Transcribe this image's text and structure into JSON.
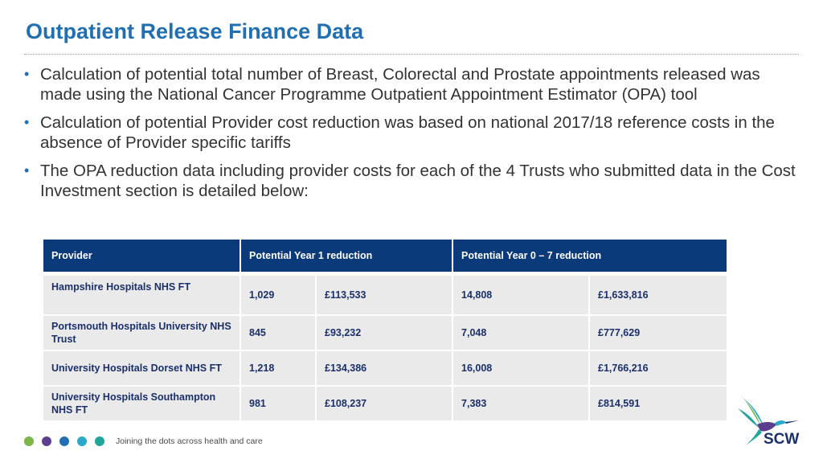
{
  "title": "Outpatient Release Finance Data",
  "bullets": [
    "Calculation of potential total number of Breast, Colorectal and Prostate appointments released was made using the National Cancer Programme Outpatient Appointment Estimator (OPA) tool",
    "Calculation of potential Provider cost reduction was based on national 2017/18 reference costs in the absence of Provider specific tariffs",
    "The OPA reduction data including provider costs for each of the 4 Trusts who submitted data in the Cost Investment section is detailed below:"
  ],
  "table": {
    "headers": [
      "Provider",
      "Potential Year 1 reduction",
      "Potential Year 0 – 7 reduction"
    ],
    "rows": [
      [
        "Hampshire Hospitals NHS FT",
        "1,029",
        "£113,533",
        "14,808",
        "£1,633,816"
      ],
      [
        "Portsmouth Hospitals University NHS Trust",
        "845",
        "£93,232",
        "7,048",
        "£777,629"
      ],
      [
        "University Hospitals Dorset NHS FT",
        "1,218",
        "£134,386",
        "16,008",
        "£1,766,216"
      ],
      [
        "University Hospitals Southampton NHS FT",
        "981",
        "£108,237",
        "7,383",
        "£814,591"
      ]
    ]
  },
  "footer": {
    "text": "Joining the dots across health and care",
    "dot_colors": [
      "#7ab648",
      "#5b3f8e",
      "#1f6fb2",
      "#2aa9c9",
      "#1fa59a"
    ]
  },
  "logo": {
    "text": "SCW",
    "icon": "hummingbird-logo-icon"
  },
  "colors": {
    "title": "#1f6fb2",
    "header_bg": "#0b3a7a",
    "cell_bg": "#eaeaea",
    "cell_text": "#1b2f6b"
  }
}
